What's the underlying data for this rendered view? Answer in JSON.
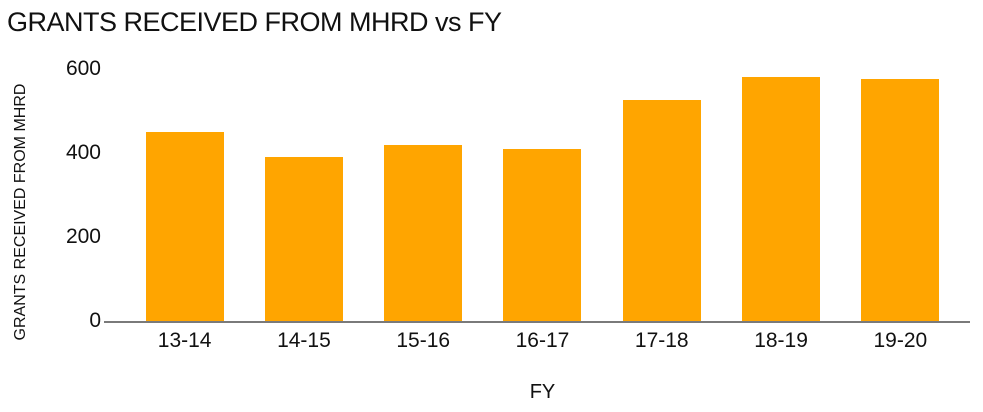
{
  "chart_data": {
    "type": "bar",
    "title": "GRANTS RECEIVED FROM MHRD vs FY",
    "xlabel": "FY",
    "ylabel": "GRANTS RECEIVED FROM MHRD",
    "categories": [
      "13-14",
      "14-15",
      "15-16",
      "16-17",
      "17-18",
      "18-19",
      "19-20"
    ],
    "values": [
      450,
      390,
      420,
      410,
      525,
      580,
      575
    ],
    "ylim": [
      0,
      600
    ],
    "yticks": [
      0,
      200,
      400,
      600
    ],
    "grid": false,
    "legend": "none",
    "bar_color": "#FFA500",
    "axis_line_color": "#7a7a7a",
    "text_color": "#111111"
  }
}
